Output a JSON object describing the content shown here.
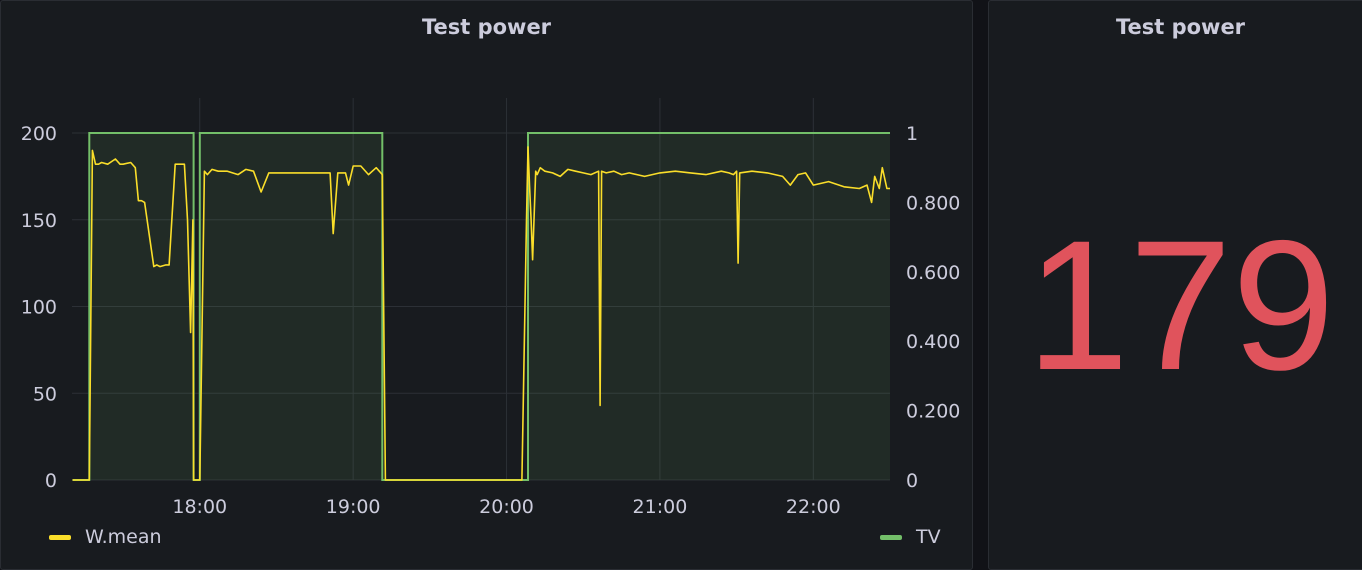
{
  "graph_panel": {
    "title": "Test power"
  },
  "stat_panel": {
    "title": "Test power",
    "value": "179",
    "color": "#e0535c"
  },
  "chart_data": {
    "type": "line",
    "title": "Test power",
    "grid": true,
    "legend": "bottom",
    "x_ticks": [
      "18:00",
      "19:00",
      "20:00",
      "21:00",
      "22:00"
    ],
    "x_tick_hours": [
      18,
      19,
      20,
      21,
      22
    ],
    "xlim_hours": [
      17.167,
      22.5
    ],
    "y_left": {
      "lim": [
        0,
        200
      ],
      "ticks": [
        "0",
        "50",
        "100",
        "150",
        "200"
      ],
      "tick_values": [
        0,
        50,
        100,
        150,
        200
      ]
    },
    "y_right": {
      "lim": [
        0,
        1
      ],
      "ticks": [
        "0",
        "0.200",
        "0.400",
        "0.600",
        "0.800",
        "1"
      ],
      "tick_values": [
        0,
        0.2,
        0.4,
        0.6,
        0.8,
        1
      ]
    },
    "series": [
      {
        "name": "W.mean",
        "axis": "left",
        "color": "#fade2a",
        "x_hours": [
          17.17,
          17.28,
          17.3,
          17.32,
          17.34,
          17.36,
          17.4,
          17.45,
          17.48,
          17.5,
          17.55,
          17.58,
          17.6,
          17.62,
          17.64,
          17.7,
          17.72,
          17.74,
          17.78,
          17.8,
          17.84,
          17.9,
          17.92,
          17.94,
          17.955,
          17.96,
          17.965,
          17.98,
          17.99,
          18.0,
          18.03,
          18.05,
          18.08,
          18.12,
          18.18,
          18.25,
          18.3,
          18.35,
          18.4,
          18.45,
          18.48,
          18.5,
          18.52,
          18.6,
          18.7,
          18.75,
          18.8,
          18.85,
          18.87,
          18.9,
          18.95,
          18.97,
          19.0,
          19.05,
          19.1,
          19.15,
          19.19,
          19.21,
          19.25,
          19.5,
          19.8,
          20.0,
          20.1,
          20.13,
          20.14,
          20.15,
          20.16,
          20.17,
          20.19,
          20.2,
          20.22,
          20.25,
          20.3,
          20.35,
          20.4,
          20.45,
          20.5,
          20.55,
          20.6,
          20.61,
          20.62,
          20.65,
          20.7,
          20.75,
          20.8,
          20.9,
          21.0,
          21.1,
          21.2,
          21.3,
          21.4,
          21.45,
          21.48,
          21.5,
          21.51,
          21.52,
          21.6,
          21.7,
          21.8,
          21.85,
          21.9,
          21.95,
          22.0,
          22.1,
          22.2,
          22.3,
          22.35,
          22.38,
          22.4,
          22.43,
          22.45,
          22.48,
          22.5
        ],
        "values": [
          0,
          0,
          190,
          182,
          182,
          183,
          182,
          185,
          182,
          182,
          183,
          180,
          161,
          161,
          160,
          123,
          124,
          123,
          124,
          124,
          182,
          182,
          150,
          85,
          150,
          0,
          0,
          0,
          0,
          0,
          178,
          176,
          179,
          178,
          178,
          176,
          179,
          178,
          166,
          177,
          177,
          177,
          177,
          177,
          177,
          177,
          177,
          177,
          142,
          177,
          177,
          170,
          181,
          181,
          176,
          180,
          176,
          0,
          0,
          0,
          0,
          0,
          0,
          150,
          192,
          170,
          150,
          127,
          178,
          176,
          180,
          178,
          177,
          175,
          179,
          178,
          177,
          176,
          178,
          43,
          178,
          177,
          178,
          176,
          177,
          175,
          177,
          178,
          177,
          176,
          178,
          177,
          176,
          178,
          125,
          177,
          178,
          177,
          175,
          170,
          176,
          177,
          170,
          172,
          169,
          168,
          170,
          160,
          175,
          168,
          180,
          168,
          168
        ]
      },
      {
        "name": "TV",
        "axis": "right",
        "color": "#73bf69",
        "x_hours": [
          17.17,
          17.28,
          17.28,
          17.96,
          17.96,
          18.0,
          18.0,
          19.19,
          19.19,
          20.14,
          20.14,
          22.5
        ],
        "values": [
          0,
          0,
          1,
          1,
          0,
          0,
          1,
          1,
          0,
          0,
          1,
          1
        ]
      }
    ]
  }
}
